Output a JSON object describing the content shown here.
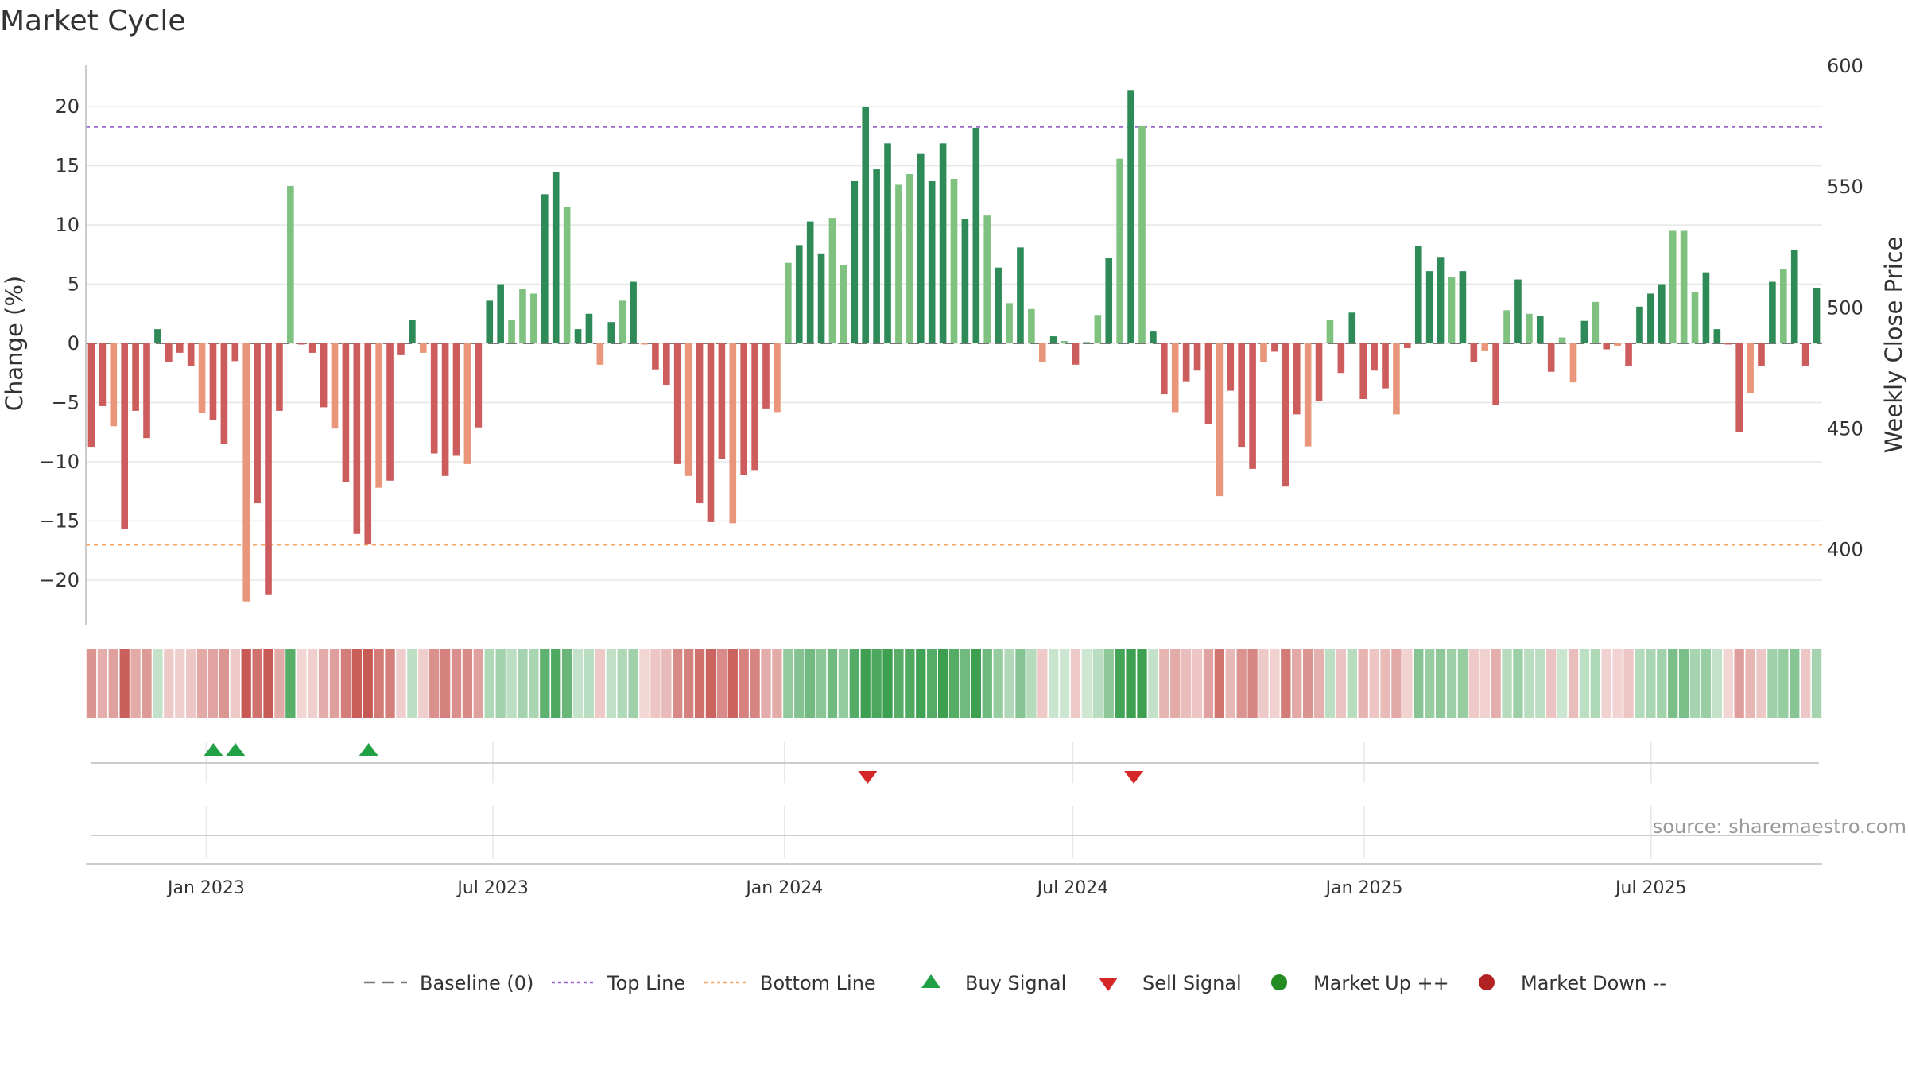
{
  "chart_data": {
    "type": "bar",
    "title": "Market Cycle",
    "ylabel": "Change (%)",
    "ylabel_right": "Weekly Close Price",
    "ylim": [
      -23.5,
      23.5
    ],
    "ylim_right": [
      370,
      600
    ],
    "yticks": [
      20,
      15,
      10,
      5,
      0,
      -5,
      -10,
      -15,
      -20
    ],
    "ytick_labels": [
      "20",
      "15",
      "10",
      "5",
      "0",
      "−5",
      "−10",
      "−15",
      "−20"
    ],
    "yticks_right": [
      600,
      550,
      500,
      450,
      400
    ],
    "top_line": 18.3,
    "bottom_line": -17.0,
    "x_start": "2022-10-17",
    "x_end": "2025-10-17",
    "x_tick_labels": [
      {
        "date": "2023-01-01",
        "label": "Jan 2023"
      },
      {
        "date": "2023-07-01",
        "label": "Jul 2023"
      },
      {
        "date": "2024-01-01",
        "label": "Jan 2024"
      },
      {
        "date": "2024-07-01",
        "label": "Jul 2024"
      },
      {
        "date": "2025-01-01",
        "label": "Jan 2025"
      },
      {
        "date": "2025-07-01",
        "label": "Jul 2025"
      }
    ],
    "weeks": [
      {
        "date": "2022-10-17",
        "value": -8.8
      },
      {
        "date": "2022-10-24",
        "value": -5.3
      },
      {
        "date": "2022-10-31",
        "value": -7.0
      },
      {
        "date": "2022-11-07",
        "value": -15.7
      },
      {
        "date": "2022-11-14",
        "value": -5.7
      },
      {
        "date": "2022-11-21",
        "value": -8.0
      },
      {
        "date": "2022-11-28",
        "value": 1.2
      },
      {
        "date": "2022-12-05",
        "value": -1.6
      },
      {
        "date": "2022-12-12",
        "value": -0.8
      },
      {
        "date": "2022-12-19",
        "value": -1.9
      },
      {
        "date": "2022-12-26",
        "value": -5.9
      },
      {
        "date": "2023-01-02",
        "value": -6.5
      },
      {
        "date": "2023-01-09",
        "value": -8.5
      },
      {
        "date": "2023-01-16",
        "value": -1.5
      },
      {
        "date": "2023-01-23",
        "value": -21.8
      },
      {
        "date": "2023-01-30",
        "value": -13.5
      },
      {
        "date": "2023-02-06",
        "value": -21.2
      },
      {
        "date": "2023-02-13",
        "value": -5.7
      },
      {
        "date": "2023-02-20",
        "value": 13.3
      },
      {
        "date": "2023-02-27",
        "value": -0.1
      },
      {
        "date": "2023-03-06",
        "value": -0.8
      },
      {
        "date": "2023-03-13",
        "value": -5.4
      },
      {
        "date": "2023-03-20",
        "value": -7.2
      },
      {
        "date": "2023-03-27",
        "value": -11.7
      },
      {
        "date": "2023-04-03",
        "value": -16.1
      },
      {
        "date": "2023-04-10",
        "value": -17.0
      },
      {
        "date": "2023-04-17",
        "value": -12.2
      },
      {
        "date": "2023-04-24",
        "value": -11.6
      },
      {
        "date": "2023-05-01",
        "value": -1.0
      },
      {
        "date": "2023-05-08",
        "value": 2.0
      },
      {
        "date": "2023-05-15",
        "value": -0.8
      },
      {
        "date": "2023-05-22",
        "value": -9.3
      },
      {
        "date": "2023-05-29",
        "value": -11.2
      },
      {
        "date": "2023-06-05",
        "value": -9.5
      },
      {
        "date": "2023-06-12",
        "value": -10.2
      },
      {
        "date": "2023-06-19",
        "value": -7.1
      },
      {
        "date": "2023-06-26",
        "value": 3.6
      },
      {
        "date": "2023-07-03",
        "value": 5.0
      },
      {
        "date": "2023-07-10",
        "value": 2.0
      },
      {
        "date": "2023-07-17",
        "value": 4.6
      },
      {
        "date": "2023-07-24",
        "value": 4.2
      },
      {
        "date": "2023-07-31",
        "value": 12.6
      },
      {
        "date": "2023-08-07",
        "value": 14.5
      },
      {
        "date": "2023-08-14",
        "value": 11.5
      },
      {
        "date": "2023-08-21",
        "value": 1.2
      },
      {
        "date": "2023-08-28",
        "value": 2.5
      },
      {
        "date": "2023-09-04",
        "value": -1.8
      },
      {
        "date": "2023-09-11",
        "value": 1.8
      },
      {
        "date": "2023-09-18",
        "value": 3.6
      },
      {
        "date": "2023-09-25",
        "value": 5.2
      },
      {
        "date": "2023-10-02",
        "value": -0.1
      },
      {
        "date": "2023-10-09",
        "value": -2.2
      },
      {
        "date": "2023-10-16",
        "value": -3.5
      },
      {
        "date": "2023-10-23",
        "value": -10.2
      },
      {
        "date": "2023-10-30",
        "value": -11.2
      },
      {
        "date": "2023-11-06",
        "value": -13.5
      },
      {
        "date": "2023-11-13",
        "value": -15.1
      },
      {
        "date": "2023-11-20",
        "value": -9.8
      },
      {
        "date": "2023-11-27",
        "value": -15.2
      },
      {
        "date": "2023-12-04",
        "value": -11.1
      },
      {
        "date": "2023-12-11",
        "value": -10.7
      },
      {
        "date": "2023-12-18",
        "value": -5.5
      },
      {
        "date": "2023-12-25",
        "value": -5.8
      },
      {
        "date": "2024-01-01",
        "value": 6.8
      },
      {
        "date": "2024-01-08",
        "value": 8.3
      },
      {
        "date": "2024-01-15",
        "value": 10.3
      },
      {
        "date": "2024-01-22",
        "value": 7.6
      },
      {
        "date": "2024-01-29",
        "value": 10.6
      },
      {
        "date": "2024-02-05",
        "value": 6.6
      },
      {
        "date": "2024-02-12",
        "value": 13.7
      },
      {
        "date": "2024-02-19",
        "value": 20.0
      },
      {
        "date": "2024-02-26",
        "value": 14.7
      },
      {
        "date": "2024-03-04",
        "value": 16.9
      },
      {
        "date": "2024-03-11",
        "value": 13.4
      },
      {
        "date": "2024-03-18",
        "value": 14.3
      },
      {
        "date": "2024-03-25",
        "value": 16.0
      },
      {
        "date": "2024-04-01",
        "value": 13.7
      },
      {
        "date": "2024-04-08",
        "value": 16.9
      },
      {
        "date": "2024-04-15",
        "value": 13.9
      },
      {
        "date": "2024-04-22",
        "value": 10.5
      },
      {
        "date": "2024-04-29",
        "value": 18.2
      },
      {
        "date": "2024-05-06",
        "value": 10.8
      },
      {
        "date": "2024-05-13",
        "value": 6.4
      },
      {
        "date": "2024-05-20",
        "value": 3.4
      },
      {
        "date": "2024-05-27",
        "value": 8.1
      },
      {
        "date": "2024-06-03",
        "value": 2.9
      },
      {
        "date": "2024-06-10",
        "value": -1.6
      },
      {
        "date": "2024-06-17",
        "value": 0.6
      },
      {
        "date": "2024-06-24",
        "value": 0.2
      },
      {
        "date": "2024-07-01",
        "value": -1.8
      },
      {
        "date": "2024-07-08",
        "value": 0.1
      },
      {
        "date": "2024-07-15",
        "value": 2.4
      },
      {
        "date": "2024-07-22",
        "value": 7.2
      },
      {
        "date": "2024-07-29",
        "value": 15.6
      },
      {
        "date": "2024-08-05",
        "value": 21.4
      },
      {
        "date": "2024-08-12",
        "value": 18.4
      },
      {
        "date": "2024-08-19",
        "value": 1.0
      },
      {
        "date": "2024-08-26",
        "value": -4.3
      },
      {
        "date": "2024-09-02",
        "value": -5.8
      },
      {
        "date": "2024-09-09",
        "value": -3.2
      },
      {
        "date": "2024-09-16",
        "value": -2.3
      },
      {
        "date": "2024-09-23",
        "value": -6.8
      },
      {
        "date": "2024-09-30",
        "value": -12.9
      },
      {
        "date": "2024-10-07",
        "value": -4.0
      },
      {
        "date": "2024-10-14",
        "value": -8.8
      },
      {
        "date": "2024-10-21",
        "value": -10.6
      },
      {
        "date": "2024-10-28",
        "value": -1.6
      },
      {
        "date": "2024-11-04",
        "value": -0.7
      },
      {
        "date": "2024-11-11",
        "value": -12.1
      },
      {
        "date": "2024-11-18",
        "value": -6.0
      },
      {
        "date": "2024-11-25",
        "value": -8.7
      },
      {
        "date": "2024-12-02",
        "value": -4.9
      },
      {
        "date": "2024-12-09",
        "value": 2.0
      },
      {
        "date": "2024-12-16",
        "value": -2.5
      },
      {
        "date": "2024-12-23",
        "value": 2.6
      },
      {
        "date": "2024-12-30",
        "value": -4.7
      },
      {
        "date": "2025-01-06",
        "value": -2.3
      },
      {
        "date": "2025-01-13",
        "value": -3.8
      },
      {
        "date": "2025-01-20",
        "value": -6.0
      },
      {
        "date": "2025-01-27",
        "value": -0.4
      },
      {
        "date": "2025-02-03",
        "value": 8.2
      },
      {
        "date": "2025-02-10",
        "value": 6.1
      },
      {
        "date": "2025-02-17",
        "value": 7.3
      },
      {
        "date": "2025-02-24",
        "value": 5.6
      },
      {
        "date": "2025-03-03",
        "value": 6.1
      },
      {
        "date": "2025-03-10",
        "value": -1.6
      },
      {
        "date": "2025-03-17",
        "value": -0.6
      },
      {
        "date": "2025-03-24",
        "value": -5.2
      },
      {
        "date": "2025-03-31",
        "value": 2.8
      },
      {
        "date": "2025-04-07",
        "value": 5.4
      },
      {
        "date": "2025-04-14",
        "value": 2.5
      },
      {
        "date": "2025-04-21",
        "value": 2.3
      },
      {
        "date": "2025-04-28",
        "value": -2.4
      },
      {
        "date": "2025-05-05",
        "value": 0.5
      },
      {
        "date": "2025-05-12",
        "value": -3.3
      },
      {
        "date": "2025-05-19",
        "value": 1.9
      },
      {
        "date": "2025-05-26",
        "value": 3.5
      },
      {
        "date": "2025-06-02",
        "value": -0.5
      },
      {
        "date": "2025-06-09",
        "value": -0.2
      },
      {
        "date": "2025-06-16",
        "value": -1.9
      },
      {
        "date": "2025-06-23",
        "value": 3.1
      },
      {
        "date": "2025-06-30",
        "value": 4.2
      },
      {
        "date": "2025-07-07",
        "value": 5.0
      },
      {
        "date": "2025-07-14",
        "value": 9.5
      },
      {
        "date": "2025-07-21",
        "value": 9.5
      },
      {
        "date": "2025-07-28",
        "value": 4.3
      },
      {
        "date": "2025-08-04",
        "value": 6.0
      },
      {
        "date": "2025-08-11",
        "value": 1.2
      },
      {
        "date": "2025-08-18",
        "value": -0.1
      },
      {
        "date": "2025-08-25",
        "value": -7.5
      },
      {
        "date": "2025-09-01",
        "value": -4.2
      },
      {
        "date": "2025-09-08",
        "value": -1.9
      },
      {
        "date": "2025-09-15",
        "value": 5.2
      },
      {
        "date": "2025-09-22",
        "value": 6.3
      },
      {
        "date": "2025-09-29",
        "value": 7.9
      },
      {
        "date": "2025-10-06",
        "value": -1.9
      },
      {
        "date": "2025-10-13",
        "value": 4.7
      }
    ],
    "buy_signals": [
      "2023-01-02",
      "2023-01-16",
      "2023-04-10"
    ],
    "sell_signals": [
      "2024-02-19",
      "2024-08-05"
    ],
    "colors": {
      "up_strong": "#2e8b57",
      "up_light": "#7fc17f",
      "down_strong": "#cd5c5c",
      "down_light": "#e9967a",
      "top_line": "#9966cc",
      "bottom_line": "#f4a460",
      "baseline": "#777777",
      "buy": "#22a045",
      "sell": "#d62728",
      "market_up": "#228b22",
      "market_down": "#b22222"
    },
    "legend": [
      {
        "key": "baseline",
        "label": "Baseline (0)",
        "marker": "dash"
      },
      {
        "key": "top",
        "label": "Top Line",
        "marker": "dotted"
      },
      {
        "key": "bottom",
        "label": "Bottom Line",
        "marker": "dotted"
      },
      {
        "key": "buy",
        "label": "Buy Signal",
        "marker": "triangle-up"
      },
      {
        "key": "sell",
        "label": "Sell Signal",
        "marker": "triangle-down"
      },
      {
        "key": "up",
        "label": "Market Up ++",
        "marker": "circle"
      },
      {
        "key": "down",
        "label": "Market Down --",
        "marker": "circle"
      }
    ],
    "source": "source: sharemaestro.com"
  }
}
